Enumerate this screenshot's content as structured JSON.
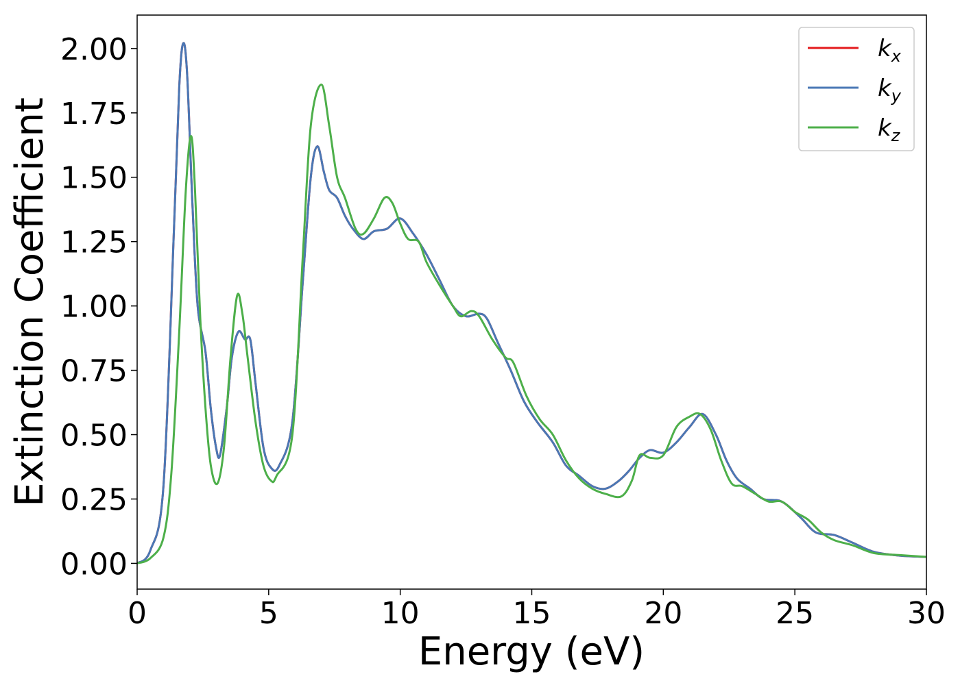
{
  "chart_data": {
    "type": "line",
    "xlabel": "Energy (eV)",
    "ylabel": "Extinction Coefficient",
    "xlim": [
      0,
      30
    ],
    "ylim": [
      -0.1,
      2.13
    ],
    "xticks": [
      0,
      5,
      10,
      15,
      20,
      25,
      30
    ],
    "xtick_labels": [
      "0",
      "5",
      "10",
      "15",
      "20",
      "25",
      "30"
    ],
    "yticks": [
      0,
      0.25,
      0.5,
      0.75,
      1.0,
      1.25,
      1.5,
      1.75,
      2.0
    ],
    "ytick_labels": [
      "0.00",
      "0.25",
      "0.50",
      "0.75",
      "1.00",
      "1.25",
      "1.50",
      "1.75",
      "2.00"
    ],
    "grid": false,
    "legend_position": "top-right",
    "series": [
      {
        "name": "k",
        "subscript": "x",
        "color": "#e41a1c",
        "points": [
          [
            0,
            0.0
          ],
          [
            0.5,
            0.05
          ],
          [
            1.0,
            0.3
          ],
          [
            1.4,
            1.3
          ],
          [
            1.6,
            1.85
          ],
          [
            1.75,
            2.02
          ],
          [
            1.9,
            1.9
          ],
          [
            2.1,
            1.4
          ],
          [
            2.3,
            1.0
          ],
          [
            2.6,
            0.82
          ],
          [
            2.8,
            0.6
          ],
          [
            3.0,
            0.45
          ],
          [
            3.15,
            0.42
          ],
          [
            3.4,
            0.6
          ],
          [
            3.6,
            0.8
          ],
          [
            3.85,
            0.9
          ],
          [
            4.1,
            0.87
          ],
          [
            4.3,
            0.87
          ],
          [
            4.5,
            0.7
          ],
          [
            4.8,
            0.45
          ],
          [
            5.1,
            0.37
          ],
          [
            5.4,
            0.38
          ],
          [
            5.9,
            0.55
          ],
          [
            6.3,
            1.1
          ],
          [
            6.6,
            1.5
          ],
          [
            6.85,
            1.62
          ],
          [
            7.1,
            1.52
          ],
          [
            7.3,
            1.45
          ],
          [
            7.6,
            1.42
          ],
          [
            7.9,
            1.35
          ],
          [
            8.2,
            1.3
          ],
          [
            8.6,
            1.26
          ],
          [
            9.0,
            1.29
          ],
          [
            9.5,
            1.3
          ],
          [
            10.0,
            1.34
          ],
          [
            10.5,
            1.28
          ],
          [
            11.0,
            1.2
          ],
          [
            11.5,
            1.1
          ],
          [
            12.0,
            1.0
          ],
          [
            12.5,
            0.96
          ],
          [
            13.0,
            0.97
          ],
          [
            13.3,
            0.95
          ],
          [
            13.7,
            0.86
          ],
          [
            14.2,
            0.75
          ],
          [
            14.7,
            0.63
          ],
          [
            15.2,
            0.55
          ],
          [
            15.8,
            0.47
          ],
          [
            16.3,
            0.38
          ],
          [
            16.8,
            0.34
          ],
          [
            17.3,
            0.3
          ],
          [
            17.8,
            0.29
          ],
          [
            18.3,
            0.32
          ],
          [
            18.7,
            0.36
          ],
          [
            19.1,
            0.41
          ],
          [
            19.5,
            0.44
          ],
          [
            20.0,
            0.43
          ],
          [
            20.5,
            0.47
          ],
          [
            21.0,
            0.53
          ],
          [
            21.5,
            0.58
          ],
          [
            22.0,
            0.5
          ],
          [
            22.4,
            0.4
          ],
          [
            22.8,
            0.33
          ],
          [
            23.3,
            0.29
          ],
          [
            23.8,
            0.25
          ],
          [
            24.5,
            0.24
          ],
          [
            25.2,
            0.18
          ],
          [
            25.8,
            0.12
          ],
          [
            26.5,
            0.11
          ],
          [
            27.2,
            0.08
          ],
          [
            28.0,
            0.045
          ],
          [
            29.0,
            0.03
          ],
          [
            30.0,
            0.025
          ]
        ]
      },
      {
        "name": "k",
        "subscript": "y",
        "color": "#4a78b5",
        "points": [
          [
            0,
            0.0
          ],
          [
            0.5,
            0.05
          ],
          [
            1.0,
            0.3
          ],
          [
            1.4,
            1.3
          ],
          [
            1.6,
            1.85
          ],
          [
            1.75,
            2.02
          ],
          [
            1.9,
            1.9
          ],
          [
            2.1,
            1.4
          ],
          [
            2.3,
            1.0
          ],
          [
            2.6,
            0.82
          ],
          [
            2.8,
            0.6
          ],
          [
            3.0,
            0.45
          ],
          [
            3.15,
            0.42
          ],
          [
            3.4,
            0.6
          ],
          [
            3.6,
            0.8
          ],
          [
            3.85,
            0.9
          ],
          [
            4.1,
            0.87
          ],
          [
            4.3,
            0.87
          ],
          [
            4.5,
            0.7
          ],
          [
            4.8,
            0.45
          ],
          [
            5.1,
            0.37
          ],
          [
            5.4,
            0.38
          ],
          [
            5.9,
            0.55
          ],
          [
            6.3,
            1.1
          ],
          [
            6.6,
            1.5
          ],
          [
            6.85,
            1.62
          ],
          [
            7.1,
            1.52
          ],
          [
            7.3,
            1.45
          ],
          [
            7.6,
            1.42
          ],
          [
            7.9,
            1.35
          ],
          [
            8.2,
            1.3
          ],
          [
            8.6,
            1.26
          ],
          [
            9.0,
            1.29
          ],
          [
            9.5,
            1.3
          ],
          [
            10.0,
            1.34
          ],
          [
            10.5,
            1.28
          ],
          [
            11.0,
            1.2
          ],
          [
            11.5,
            1.1
          ],
          [
            12.0,
            1.0
          ],
          [
            12.5,
            0.96
          ],
          [
            13.0,
            0.97
          ],
          [
            13.3,
            0.95
          ],
          [
            13.7,
            0.86
          ],
          [
            14.2,
            0.75
          ],
          [
            14.7,
            0.63
          ],
          [
            15.2,
            0.55
          ],
          [
            15.8,
            0.47
          ],
          [
            16.3,
            0.38
          ],
          [
            16.8,
            0.34
          ],
          [
            17.3,
            0.3
          ],
          [
            17.8,
            0.29
          ],
          [
            18.3,
            0.32
          ],
          [
            18.7,
            0.36
          ],
          [
            19.1,
            0.41
          ],
          [
            19.5,
            0.44
          ],
          [
            20.0,
            0.43
          ],
          [
            20.5,
            0.47
          ],
          [
            21.0,
            0.53
          ],
          [
            21.5,
            0.58
          ],
          [
            22.0,
            0.5
          ],
          [
            22.4,
            0.4
          ],
          [
            22.8,
            0.33
          ],
          [
            23.3,
            0.29
          ],
          [
            23.8,
            0.25
          ],
          [
            24.5,
            0.24
          ],
          [
            25.2,
            0.18
          ],
          [
            25.8,
            0.12
          ],
          [
            26.5,
            0.11
          ],
          [
            27.2,
            0.08
          ],
          [
            28.0,
            0.045
          ],
          [
            29.0,
            0.03
          ],
          [
            30.0,
            0.025
          ]
        ]
      },
      {
        "name": "k",
        "subscript": "z",
        "color": "#4daf4a",
        "points": [
          [
            0,
            0.0
          ],
          [
            0.5,
            0.02
          ],
          [
            1.0,
            0.1
          ],
          [
            1.3,
            0.35
          ],
          [
            1.6,
            0.9
          ],
          [
            1.85,
            1.45
          ],
          [
            2.05,
            1.66
          ],
          [
            2.2,
            1.45
          ],
          [
            2.4,
            0.95
          ],
          [
            2.6,
            0.6
          ],
          [
            2.8,
            0.38
          ],
          [
            3.05,
            0.31
          ],
          [
            3.3,
            0.45
          ],
          [
            3.55,
            0.8
          ],
          [
            3.8,
            1.04
          ],
          [
            4.0,
            0.97
          ],
          [
            4.2,
            0.8
          ],
          [
            4.5,
            0.55
          ],
          [
            4.8,
            0.38
          ],
          [
            5.1,
            0.32
          ],
          [
            5.3,
            0.34
          ],
          [
            5.9,
            0.5
          ],
          [
            6.3,
            1.2
          ],
          [
            6.6,
            1.7
          ],
          [
            7.0,
            1.86
          ],
          [
            7.3,
            1.7
          ],
          [
            7.6,
            1.5
          ],
          [
            7.9,
            1.42
          ],
          [
            8.3,
            1.3
          ],
          [
            8.6,
            1.28
          ],
          [
            9.0,
            1.34
          ],
          [
            9.4,
            1.42
          ],
          [
            9.7,
            1.4
          ],
          [
            10.0,
            1.32
          ],
          [
            10.3,
            1.26
          ],
          [
            10.7,
            1.25
          ],
          [
            11.0,
            1.17
          ],
          [
            11.5,
            1.08
          ],
          [
            12.0,
            1.0
          ],
          [
            12.3,
            0.96
          ],
          [
            12.7,
            0.98
          ],
          [
            13.0,
            0.96
          ],
          [
            13.5,
            0.87
          ],
          [
            14.0,
            0.8
          ],
          [
            14.3,
            0.78
          ],
          [
            14.8,
            0.65
          ],
          [
            15.3,
            0.56
          ],
          [
            15.8,
            0.5
          ],
          [
            16.3,
            0.4
          ],
          [
            16.8,
            0.33
          ],
          [
            17.3,
            0.29
          ],
          [
            17.8,
            0.27
          ],
          [
            18.4,
            0.26
          ],
          [
            18.8,
            0.32
          ],
          [
            19.1,
            0.42
          ],
          [
            19.5,
            0.41
          ],
          [
            20.0,
            0.42
          ],
          [
            20.5,
            0.53
          ],
          [
            21.0,
            0.57
          ],
          [
            21.4,
            0.58
          ],
          [
            21.8,
            0.52
          ],
          [
            22.2,
            0.4
          ],
          [
            22.6,
            0.31
          ],
          [
            23.0,
            0.3
          ],
          [
            23.5,
            0.27
          ],
          [
            24.0,
            0.24
          ],
          [
            24.5,
            0.24
          ],
          [
            25.0,
            0.2
          ],
          [
            25.5,
            0.17
          ],
          [
            26.0,
            0.12
          ],
          [
            26.5,
            0.09
          ],
          [
            27.2,
            0.07
          ],
          [
            28.0,
            0.04
          ],
          [
            29.0,
            0.032
          ],
          [
            30.0,
            0.025
          ]
        ]
      }
    ]
  }
}
